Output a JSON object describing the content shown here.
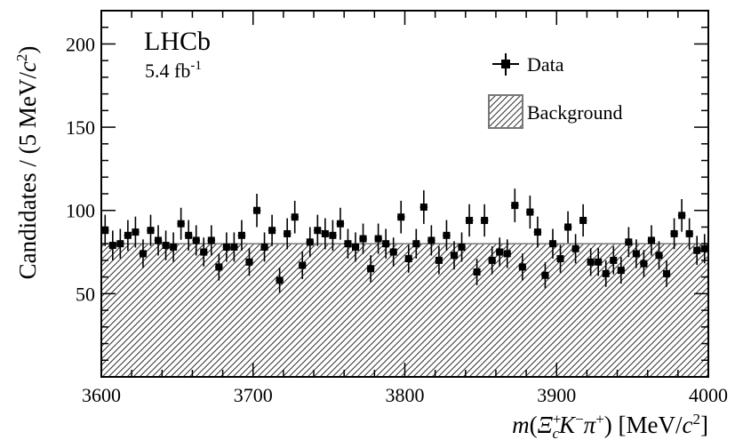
{
  "chart_data": {
    "type": "scatter",
    "experiment_label": "LHCb",
    "luminosity_label": "5.4 fb",
    "luminosity_exponent": "-1",
    "xlabel": "m(Ξc+K−π+) [MeV/c2]",
    "ylabel": "Candidates / (5 MeV/c2)",
    "xlim": [
      3600,
      4000
    ],
    "ylim": [
      0,
      220
    ],
    "xticks": [
      3600,
      3700,
      3800,
      3900,
      4000
    ],
    "yticks": [
      50,
      100,
      150,
      200
    ],
    "legend": {
      "placement": "top-right",
      "entries": [
        "Data",
        "Background"
      ]
    },
    "background_level": 80,
    "series": [
      {
        "name": "Data",
        "x": [
          3602.5,
          3607.5,
          3612.5,
          3617.5,
          3622.5,
          3627.5,
          3632.5,
          3637.5,
          3642.5,
          3647.5,
          3652.5,
          3657.5,
          3662.5,
          3667.5,
          3672.5,
          3677.5,
          3682.5,
          3687.5,
          3692.5,
          3697.5,
          3702.5,
          3707.5,
          3712.5,
          3717.5,
          3722.5,
          3727.5,
          3732.5,
          3737.5,
          3742.5,
          3747.5,
          3752.5,
          3757.5,
          3762.5,
          3767.5,
          3772.5,
          3777.5,
          3782.5,
          3787.5,
          3792.5,
          3797.5,
          3802.5,
          3807.5,
          3812.5,
          3817.5,
          3822.5,
          3827.5,
          3832.5,
          3837.5,
          3842.5,
          3847.5,
          3852.5,
          3857.5,
          3862.5,
          3867.5,
          3872.5,
          3877.5,
          3882.5,
          3887.5,
          3892.5,
          3897.5,
          3902.5,
          3907.5,
          3912.5,
          3917.5,
          3922.5,
          3927.5,
          3932.5,
          3937.5,
          3942.5,
          3947.5,
          3952.5,
          3957.5,
          3962.5,
          3967.5,
          3972.5,
          3977.5,
          3982.5,
          3987.5,
          3992.5,
          3997.5
        ],
        "y": [
          88,
          79,
          80,
          85,
          87,
          74,
          88,
          82,
          79,
          78,
          92,
          85,
          82,
          75,
          82,
          66,
          78,
          78,
          85,
          69,
          100,
          78,
          88,
          58,
          86,
          96,
          67,
          81,
          88,
          86,
          85,
          92,
          80,
          78,
          83,
          65,
          83,
          80,
          75,
          96,
          71,
          80,
          102,
          82,
          70,
          85,
          73,
          78,
          94,
          63,
          94,
          70,
          75,
          74,
          103,
          66,
          99,
          87,
          61,
          80,
          71,
          90,
          77,
          94,
          69,
          69,
          62,
          70,
          64,
          81,
          74,
          68,
          82,
          73,
          62,
          86,
          97,
          86,
          76,
          77
        ],
        "y_err": [
          9.4,
          8.9,
          8.9,
          9.2,
          9.3,
          8.6,
          9.4,
          9.1,
          8.9,
          8.8,
          9.6,
          9.2,
          9.1,
          8.7,
          9.1,
          8.1,
          8.8,
          8.8,
          9.2,
          8.3,
          10.0,
          8.8,
          9.4,
          7.6,
          9.3,
          9.8,
          8.2,
          9.0,
          9.4,
          9.3,
          9.2,
          9.6,
          8.9,
          8.8,
          9.1,
          8.1,
          9.1,
          8.9,
          8.7,
          9.8,
          8.4,
          8.9,
          10.1,
          9.1,
          8.4,
          9.2,
          8.5,
          8.8,
          9.7,
          7.9,
          9.7,
          8.4,
          8.7,
          8.6,
          10.1,
          8.1,
          9.9,
          9.3,
          7.8,
          8.9,
          8.4,
          9.5,
          8.8,
          9.7,
          8.3,
          8.3,
          7.9,
          8.4,
          8.0,
          9.0,
          8.6,
          8.2,
          9.1,
          8.5,
          7.9,
          9.3,
          9.8,
          9.3,
          8.7,
          8.8
        ]
      }
    ]
  }
}
